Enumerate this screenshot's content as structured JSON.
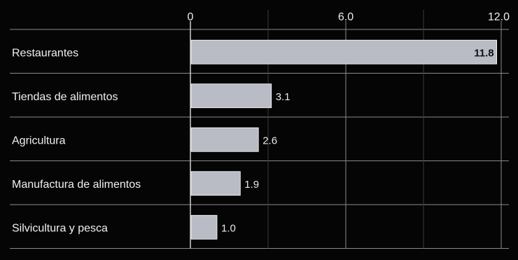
{
  "chart_data": {
    "type": "bar",
    "orientation": "horizontal",
    "categories": [
      "Restaurantes",
      "Tiendas de alimentos",
      "Agricultura",
      "Manufactura de alimentos",
      "Silvicultura y pesca"
    ],
    "values": [
      11.8,
      3.1,
      2.6,
      1.9,
      1.0
    ],
    "value_labels": [
      "11.8",
      "3.1",
      "2.6",
      "1.9",
      "1.0"
    ],
    "xticks": [
      0,
      6,
      12
    ],
    "xtick_labels": [
      "0",
      "6.0",
      "12.0"
    ],
    "xlim": [
      0,
      12
    ],
    "grid": true,
    "colors": {
      "background": "#050505",
      "bar": "#b9bcc5",
      "grid": "#8a8a8a",
      "text": "#f0f0f0"
    }
  }
}
